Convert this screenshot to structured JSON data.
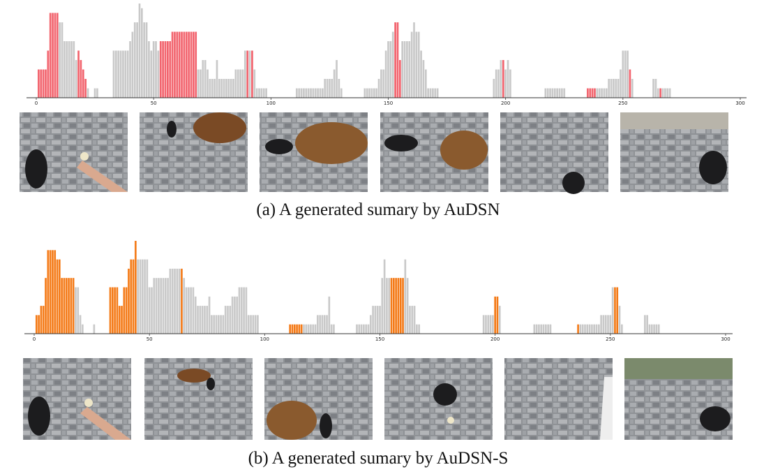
{
  "chart_data": [
    {
      "type": "bar",
      "title": "(a) A generated sumary by AuDSN",
      "xlim": [
        0,
        300
      ],
      "xticks": [
        0,
        50,
        100,
        150,
        200,
        250,
        300
      ],
      "ylim": [
        0,
        1
      ],
      "color": "#c9c9c9",
      "highlight_color": "#f2646e",
      "highlight_ranges": [
        [
          1,
          9
        ],
        [
          18,
          21
        ],
        [
          53,
          68
        ],
        [
          90,
          90
        ],
        [
          92,
          92
        ],
        [
          153,
          155
        ],
        [
          199,
          199
        ],
        [
          235,
          238
        ],
        [
          253,
          253
        ],
        [
          266,
          266
        ]
      ],
      "values": [
        0,
        0.3,
        0.3,
        0.3,
        0.3,
        0.5,
        0.9,
        0.9,
        0.9,
        0.9,
        0.8,
        0.8,
        0.6,
        0.6,
        0.6,
        0.6,
        0.6,
        0.4,
        0.5,
        0.4,
        0.3,
        0.2,
        0.1,
        0,
        0,
        0.1,
        0.1,
        0,
        0,
        0,
        0,
        0,
        0,
        0.5,
        0.5,
        0.5,
        0.5,
        0.5,
        0.5,
        0.5,
        0.6,
        0.7,
        0.8,
        0.8,
        1.0,
        0.95,
        0.8,
        0.8,
        0.6,
        0.5,
        0.6,
        0.6,
        0.5,
        0.6,
        0.6,
        0.6,
        0.6,
        0.6,
        0.7,
        0.7,
        0.7,
        0.7,
        0.7,
        0.7,
        0.7,
        0.7,
        0.7,
        0.7,
        0.7,
        0.3,
        0.3,
        0.4,
        0.4,
        0.3,
        0.2,
        0.2,
        0.2,
        0.4,
        0.2,
        0.2,
        0.2,
        0.2,
        0.2,
        0.2,
        0.2,
        0.3,
        0.3,
        0.3,
        0.3,
        0.5,
        0.5,
        0.5,
        0.5,
        0.3,
        0.1,
        0.1,
        0.1,
        0.1,
        0.1,
        0,
        0,
        0,
        0,
        0,
        0,
        0,
        0,
        0,
        0,
        0,
        0,
        0.1,
        0.1,
        0.1,
        0.1,
        0.1,
        0.1,
        0.1,
        0.1,
        0.1,
        0.1,
        0.1,
        0.1,
        0.2,
        0.2,
        0.2,
        0.2,
        0.3,
        0.4,
        0.2,
        0.1,
        0,
        0,
        0,
        0,
        0,
        0,
        0,
        0,
        0,
        0.1,
        0.1,
        0.1,
        0.1,
        0.1,
        0.1,
        0.2,
        0.3,
        0.3,
        0.5,
        0.6,
        0.6,
        0.7,
        0.8,
        0.8,
        0.4,
        0.6,
        0.6,
        0.6,
        0.6,
        0.7,
        0.8,
        0.7,
        0.7,
        0.5,
        0.4,
        0.3,
        0.1,
        0.1,
        0.1,
        0.1,
        0.1,
        0,
        0,
        0,
        0,
        0,
        0,
        0,
        0,
        0,
        0,
        0,
        0,
        0,
        0,
        0,
        0,
        0,
        0,
        0,
        0,
        0,
        0,
        0,
        0.2,
        0.3,
        0.3,
        0.4,
        0.4,
        0.3,
        0.4,
        0.3,
        0,
        0,
        0,
        0,
        0,
        0,
        0,
        0,
        0,
        0,
        0,
        0,
        0,
        0,
        0.1,
        0.1,
        0.1,
        0.1,
        0.1,
        0.1,
        0.1,
        0.1,
        0.1,
        0,
        0,
        0,
        0,
        0,
        0,
        0,
        0,
        0,
        0.1,
        0.1,
        0.1,
        0.1,
        0.1,
        0.1,
        0.1,
        0.1,
        0.1,
        0.2,
        0.2,
        0.2,
        0.2,
        0.2,
        0.3,
        0.5,
        0.5,
        0.5,
        0.3,
        0.2,
        0,
        0,
        0,
        0,
        0,
        0,
        0,
        0,
        0.2,
        0.2,
        0.1,
        0.1,
        0.1,
        0.1,
        0.1,
        0.1,
        0
      ]
    },
    {
      "type": "bar",
      "title": "(b) A generated sumary by AuDSN-S",
      "xlim": [
        0,
        300
      ],
      "xticks": [
        0,
        50,
        100,
        150,
        200,
        250,
        300
      ],
      "ylim": [
        0,
        1
      ],
      "color": "#c9c9c9",
      "highlight_color": "#f47a17",
      "highlight_ranges": [
        [
          1,
          17
        ],
        [
          33,
          44
        ],
        [
          64,
          64
        ],
        [
          111,
          116
        ],
        [
          155,
          160
        ],
        [
          200,
          201
        ],
        [
          236,
          236
        ],
        [
          252,
          253
        ]
      ],
      "values": [
        0,
        0.2,
        0.2,
        0.3,
        0.3,
        0.6,
        0.9,
        0.9,
        0.9,
        0.9,
        0.8,
        0.8,
        0.6,
        0.6,
        0.6,
        0.6,
        0.6,
        0.6,
        0.5,
        0.5,
        0.2,
        0.1,
        0,
        0,
        0,
        0,
        0.1,
        0,
        0,
        0,
        0,
        0,
        0,
        0.5,
        0.5,
        0.5,
        0.5,
        0.3,
        0.3,
        0.5,
        0.5,
        0.7,
        0.8,
        0.8,
        1.0,
        0.8,
        0.8,
        0.8,
        0.8,
        0.8,
        0.5,
        0.5,
        0.6,
        0.6,
        0.6,
        0.6,
        0.6,
        0.6,
        0.6,
        0.7,
        0.7,
        0.7,
        0.7,
        0.7,
        0.7,
        0.6,
        0.5,
        0.5,
        0.5,
        0.5,
        0.4,
        0.3,
        0.3,
        0.3,
        0.3,
        0.3,
        0.4,
        0.2,
        0.2,
        0.2,
        0.2,
        0.2,
        0.2,
        0.3,
        0.3,
        0.3,
        0.4,
        0.4,
        0.4,
        0.5,
        0.5,
        0.5,
        0.5,
        0.2,
        0.2,
        0.2,
        0.2,
        0.2,
        0,
        0,
        0,
        0,
        0,
        0,
        0,
        0,
        0,
        0,
        0,
        0,
        0,
        0.1,
        0.1,
        0.1,
        0.1,
        0.1,
        0.1,
        0.1,
        0.1,
        0.1,
        0.1,
        0.1,
        0.1,
        0.2,
        0.2,
        0.2,
        0.2,
        0.2,
        0.4,
        0.1,
        0.1,
        0,
        0,
        0,
        0,
        0,
        0,
        0,
        0,
        0,
        0.1,
        0.1,
        0.1,
        0.1,
        0.1,
        0.1,
        0.2,
        0.3,
        0.3,
        0.3,
        0.3,
        0.6,
        0.8,
        0.6,
        0.6,
        0.6,
        0.6,
        0.6,
        0.6,
        0.6,
        0.6,
        0.8,
        0.6,
        0.3,
        0.3,
        0.3,
        0.1,
        0.1,
        0,
        0,
        0,
        0,
        0,
        0,
        0,
        0,
        0,
        0,
        0,
        0,
        0,
        0,
        0,
        0,
        0,
        0,
        0,
        0,
        0,
        0,
        0,
        0,
        0,
        0,
        0,
        0.2,
        0.2,
        0.2,
        0.2,
        0.2,
        0.4,
        0.4,
        0.3,
        0,
        0,
        0,
        0,
        0,
        0,
        0,
        0,
        0,
        0,
        0,
        0,
        0,
        0,
        0.1,
        0.1,
        0.1,
        0.1,
        0.1,
        0.1,
        0.1,
        0.1,
        0,
        0,
        0,
        0,
        0,
        0,
        0,
        0,
        0,
        0,
        0,
        0.1,
        0.1,
        0.1,
        0.1,
        0.1,
        0.1,
        0.1,
        0.1,
        0.1,
        0.1,
        0.2,
        0.2,
        0.2,
        0.2,
        0.2,
        0.5,
        0.5,
        0.5,
        0.3,
        0.1,
        0,
        0,
        0,
        0,
        0,
        0,
        0,
        0,
        0,
        0.2,
        0.2,
        0.1,
        0.1,
        0.1,
        0.1,
        0.1
      ]
    }
  ]
}
